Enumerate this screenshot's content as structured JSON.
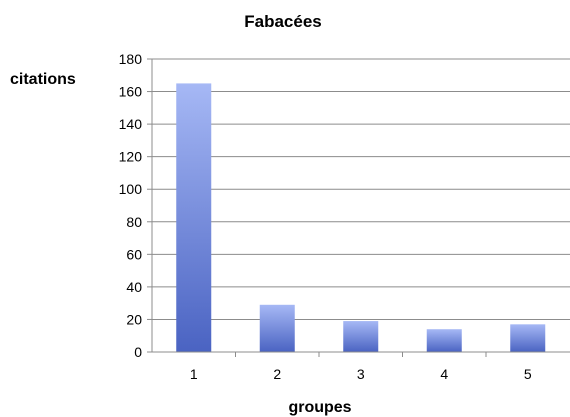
{
  "chart_data": {
    "type": "bar",
    "title": "Fabacées",
    "xlabel": "groupes",
    "ylabel": "citations",
    "categories": [
      "1",
      "2",
      "3",
      "4",
      "5"
    ],
    "values": [
      165,
      29,
      19,
      14,
      17
    ],
    "ylim": [
      0,
      180
    ],
    "yticks": [
      0,
      20,
      40,
      60,
      80,
      100,
      120,
      140,
      160,
      180
    ],
    "grid": true,
    "legend": "none",
    "colors": {
      "bar_top": "#a6b8f5",
      "bar_bottom": "#4a63c2",
      "grid": "#8c8c8c",
      "axis": "#8c8c8c"
    }
  }
}
